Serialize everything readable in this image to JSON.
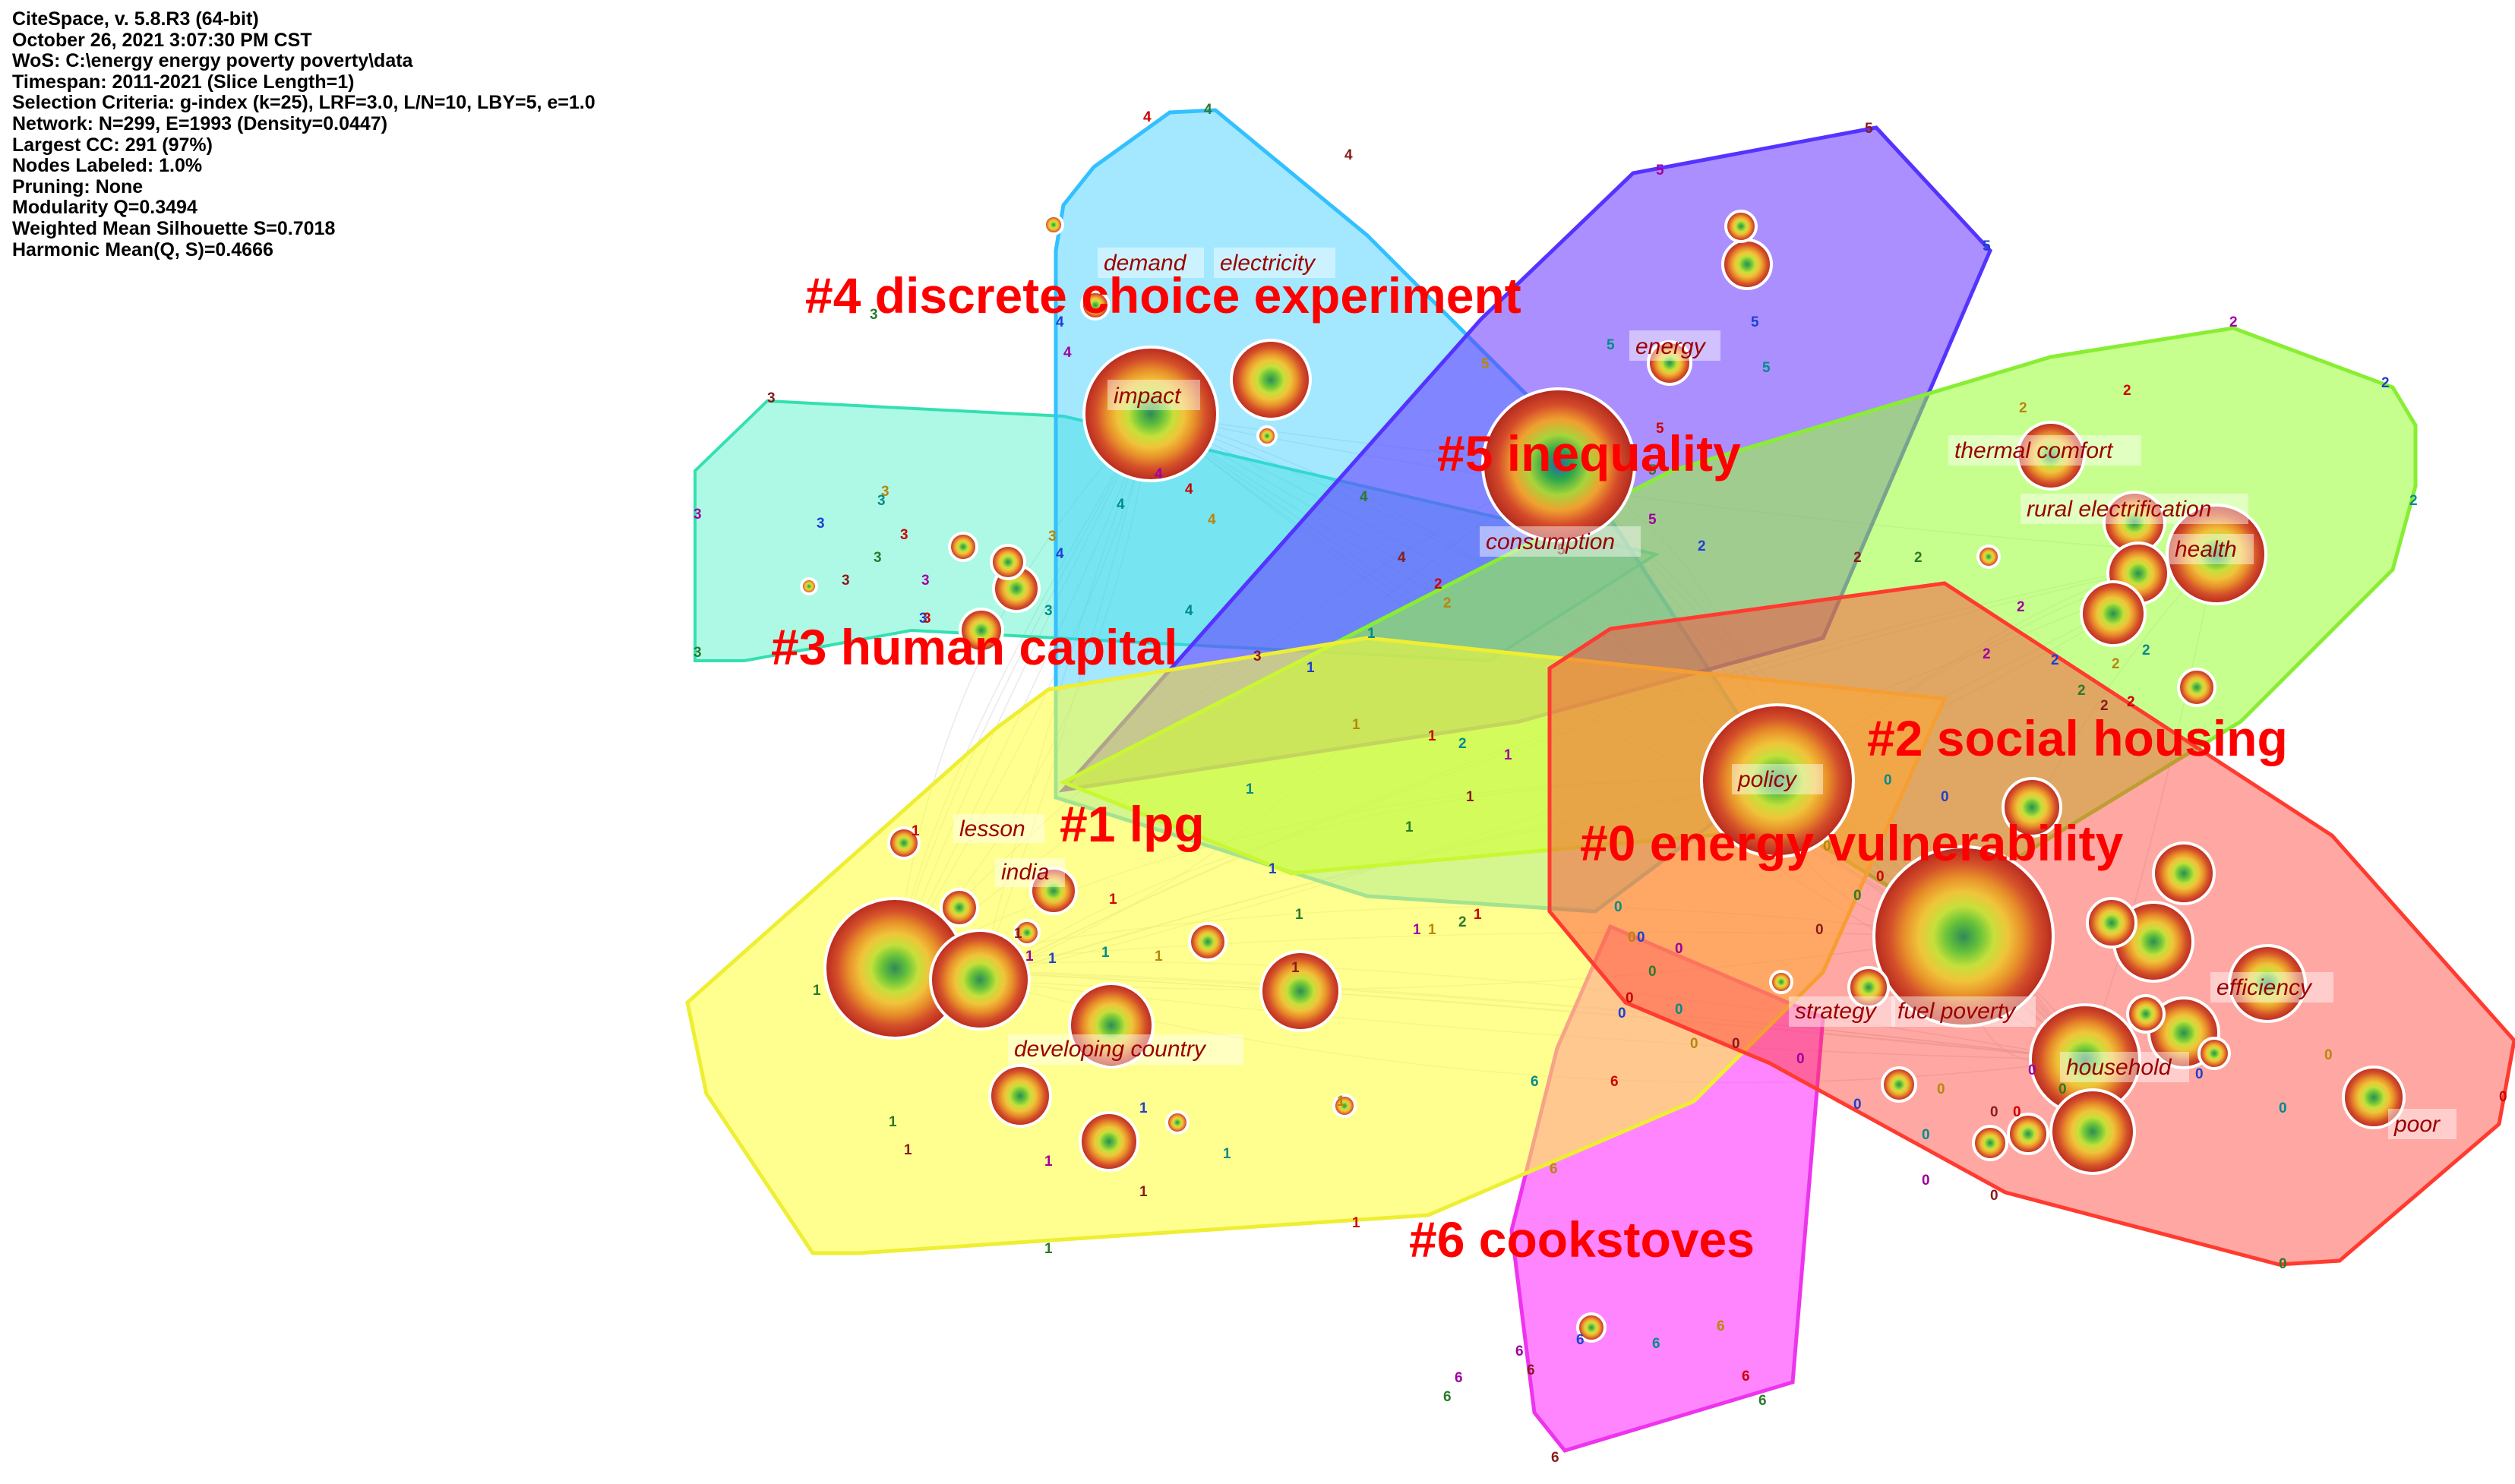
{
  "header": {
    "lines": [
      "CiteSpace, v. 5.8.R3 (64-bit)",
      "October 26, 2021 3:07:30 PM CST",
      "WoS: C:\\energy energy poverty poverty\\data",
      "Timespan: 2011-2021 (Slice Length=1)",
      "Selection Criteria: g-index (k=25), LRF=3.0, L/N=10, LBY=5, e=1.0",
      "Network: N=299, E=1993 (Density=0.0447)",
      "Largest CC: 291 (97%)",
      "Nodes Labeled: 1.0%",
      "Pruning: None",
      "Modularity Q=0.3494",
      "Weighted Mean Silhouette S=0.7018",
      "Harmonic Mean(Q, S)=0.4666"
    ]
  },
  "clusters": [
    {
      "id": "0",
      "label": "#0 energy vulnerability",
      "color": "#ff3b30"
    },
    {
      "id": "1",
      "label": "#1 lpg",
      "color": "#ffff33"
    },
    {
      "id": "2",
      "label": "#2 social housing",
      "color": "#99ff33"
    },
    {
      "id": "3",
      "label": "#3 human capital",
      "color": "#33f0c0"
    },
    {
      "id": "4",
      "label": "#4 discrete choice experiment",
      "color": "#33ccff"
    },
    {
      "id": "5",
      "label": "#5 inequality",
      "color": "#6633ff"
    },
    {
      "id": "6",
      "label": "#6 cookstoves",
      "color": "#ff33ff"
    }
  ],
  "keyword_labels": [
    "demand",
    "electricity",
    "impact",
    "energy",
    "consumption",
    "thermal comfort",
    "rural electrification",
    "health",
    "policy",
    "lesson",
    "india",
    "developing country",
    "strategy",
    "fuel poverty",
    "efficiency",
    "household",
    "poor"
  ],
  "node_markers": {
    "c0": "0",
    "c1": "1",
    "c2": "2",
    "c3": "3",
    "c4": "4",
    "c5": "5",
    "c6": "6"
  },
  "colors": {
    "label_red": "#ff0000",
    "keyword_darkred": "#9b0000",
    "ring_outer": "#c0392b"
  }
}
